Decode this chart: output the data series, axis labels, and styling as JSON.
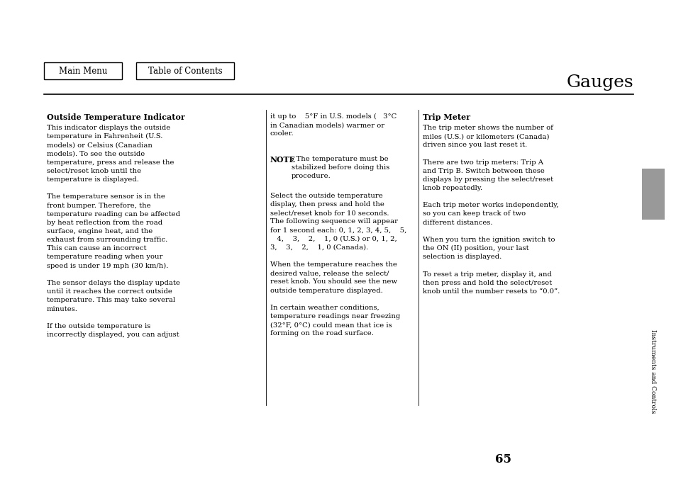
{
  "bg_color": "#ffffff",
  "page_number": "65",
  "title": "Gauges",
  "title_fontsize": 18,
  "nav_buttons": [
    "Main Menu",
    "Table of Contents"
  ],
  "sidebar_label": "Instruments and Controls",
  "sidebar_color": "#999999",
  "col1_header": "Outside Temperature Indicator",
  "col1_body": "This indicator displays the outside\ntemperature in Fahrenheit (U.S.\nmodels) or Celsius (Canadian\nmodels). To see the outside\ntemperature, press and release the\nselect/reset knob until the\ntemperature is displayed.\n\nThe temperature sensor is in the\nfront bumper. Therefore, the\ntemperature reading can be affected\nby heat reflection from the road\nsurface, engine heat, and the\nexhaust from surrounding traffic.\nThis can cause an incorrect\ntemperature reading when your\nspeed is under 19 mph (30 km/h).\n\nThe sensor delays the display update\nuntil it reaches the correct outside\ntemperature. This may take several\nminutes.\n\nIf the outside temperature is\nincorrectly displayed, you can adjust",
  "col2_body_1": "it up to    5°F in U.S. models (   3°C\nin Canadian models) warmer or\ncooler.",
  "col2_note_label": "NOTE",
  "col2_note_body": ": The temperature must be\nstabilized before doing this\nprocedure.",
  "col2_body_2": "Select the outside temperature\ndisplay, then press and hold the\nselect/reset knob for 10 seconds.\nThe following sequence will appear\nfor 1 second each: 0, 1, 2, 3, 4, 5,    5,\n   4,    3,    2,    1, 0 (U.S.) or 0, 1, 2,\n3,    3,    2,    1, 0 (Canada).\n\nWhen the temperature reaches the\ndesired value, release the select/\nreset knob. You should see the new\noutside temperature displayed.\n\nIn certain weather conditions,\ntemperature readings near freezing\n(32°F, 0°C) could mean that ice is\nforming on the road surface.",
  "col3_header": "Trip Meter",
  "col3_body": "The trip meter shows the number of\nmiles (U.S.) or kilometers (Canada)\ndriven since you last reset it.\n\nThere are two trip meters: Trip A\nand Trip B. Switch between these\ndisplays by pressing the select/reset\nknob repeatedly.\n\nEach trip meter works independently,\nso you can keep track of two\ndifferent distances.\n\nWhen you turn the ignition switch to\nthe ON (II) position, your last\nselection is displayed.\n\nTo reset a trip meter, display it, and\nthen press and hold the select/reset\nknob until the number resets to “0.0”.",
  "text_fontsize": 7.2,
  "header_fontsize": 8.0,
  "note_label_fontsize": 7.8
}
